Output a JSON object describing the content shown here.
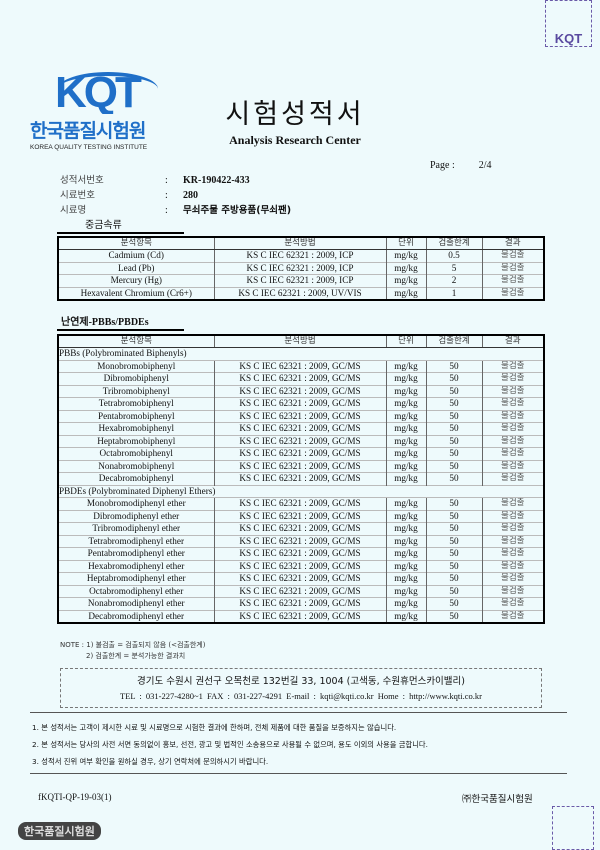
{
  "header": {
    "logo_mark": "KQT",
    "logo_korean": "한국품질시험원",
    "logo_english": "KOREA QUALITY TESTING INSTITUTE",
    "title_korean": "시험성적서",
    "title_english": "Analysis Research Center",
    "stamp_text": "KQT",
    "page_label": "Page :",
    "page_value": "2/4"
  },
  "info": [
    {
      "label": "성적서번호",
      "value": "KR-190422-433"
    },
    {
      "label": "시료번호",
      "value": "280"
    },
    {
      "label": "시료명",
      "value": "무쇠주물 주방용품(무쇠팬)"
    }
  ],
  "heavy_metals": {
    "section_title": "중금속류",
    "columns": [
      "분석항목",
      "분석방법",
      "단위",
      "검출한계",
      "결과"
    ],
    "rows": [
      [
        "Cadmium (Cd)",
        "KS C IEC 62321 : 2009, ICP",
        "mg/kg",
        "0.5",
        "불검출"
      ],
      [
        "Lead (Pb)",
        "KS C IEC 62321 : 2009, ICP",
        "mg/kg",
        "5",
        "불검출"
      ],
      [
        "Mercury (Hg)",
        "KS C IEC 62321 : 2009, ICP",
        "mg/kg",
        "2",
        "불검출"
      ],
      [
        "Hexavalent Chromium (Cr6+)",
        "KS C IEC 62321 : 2009, UV/VIS",
        "mg/kg",
        "1",
        "불검출"
      ]
    ]
  },
  "flame_retardants": {
    "section_title": "난연제-PBBs/PBDEs",
    "columns": [
      "분석항목",
      "분석방법",
      "단위",
      "검출한계",
      "결과"
    ],
    "groups": [
      {
        "name": "PBBs (Polybrominated Biphenyls)",
        "rows": [
          [
            "Monobromobiphenyl",
            "KS C IEC 62321 : 2009, GC/MS",
            "mg/kg",
            "50",
            "불검출"
          ],
          [
            "Dibromobiphenyl",
            "KS C IEC 62321 : 2009, GC/MS",
            "mg/kg",
            "50",
            "불검출"
          ],
          [
            "Tribromobiphenyl",
            "KS C IEC 62321 : 2009, GC/MS",
            "mg/kg",
            "50",
            "불검출"
          ],
          [
            "Tetrabromobiphenyl",
            "KS C IEC 62321 : 2009, GC/MS",
            "mg/kg",
            "50",
            "불검출"
          ],
          [
            "Pentabromobiphenyl",
            "KS C IEC 62321 : 2009, GC/MS",
            "mg/kg",
            "50",
            "불검출"
          ],
          [
            "Hexabromobiphenyl",
            "KS C IEC 62321 : 2009, GC/MS",
            "mg/kg",
            "50",
            "불검출"
          ],
          [
            "Heptabromobiphenyl",
            "KS C IEC 62321 : 2009, GC/MS",
            "mg/kg",
            "50",
            "불검출"
          ],
          [
            "Octabromobiphenyl",
            "KS C IEC 62321 : 2009, GC/MS",
            "mg/kg",
            "50",
            "불검출"
          ],
          [
            "Nonabromobiphenyl",
            "KS C IEC 62321 : 2009, GC/MS",
            "mg/kg",
            "50",
            "불검출"
          ],
          [
            "Decabromobiphenyl",
            "KS C IEC 62321 : 2009, GC/MS",
            "mg/kg",
            "50",
            "불검출"
          ]
        ]
      },
      {
        "name": "PBDEs (Polybrominated Diphenyl Ethers)",
        "rows": [
          [
            "Monobromodiphenyl ether",
            "KS C IEC 62321 : 2009, GC/MS",
            "mg/kg",
            "50",
            "불검출"
          ],
          [
            "Dibromodiphenyl ether",
            "KS C IEC 62321 : 2009, GC/MS",
            "mg/kg",
            "50",
            "불검출"
          ],
          [
            "Tribromodiphenyl ether",
            "KS C IEC 62321 : 2009, GC/MS",
            "mg/kg",
            "50",
            "불검출"
          ],
          [
            "Tetrabromodiphenyl ether",
            "KS C IEC 62321 : 2009, GC/MS",
            "mg/kg",
            "50",
            "불검출"
          ],
          [
            "Pentabromodiphenyl ether",
            "KS C IEC 62321 : 2009, GC/MS",
            "mg/kg",
            "50",
            "불검출"
          ],
          [
            "Hexabromodiphenyl ether",
            "KS C IEC 62321 : 2009, GC/MS",
            "mg/kg",
            "50",
            "불검출"
          ],
          [
            "Heptabromodiphenyl ether",
            "KS C IEC 62321 : 2009, GC/MS",
            "mg/kg",
            "50",
            "불검출"
          ],
          [
            "Octabromodiphenyl ether",
            "KS C IEC 62321 : 2009, GC/MS",
            "mg/kg",
            "50",
            "불검출"
          ],
          [
            "Nonabromodiphenyl ether",
            "KS C IEC 62321 : 2009, GC/MS",
            "mg/kg",
            "50",
            "불검출"
          ],
          [
            "Decabromodiphenyl ether",
            "KS C IEC 62321 : 2009, GC/MS",
            "mg/kg",
            "50",
            "불검출"
          ]
        ]
      }
    ]
  },
  "notes": [
    "NOTE : 1) 불검출 = 검출되지 않음 (<검출한계)",
    "2) 검출한계 = 분석가능한 결과치"
  ],
  "address": {
    "line1": "경기도 수원시 권선구 오목천로 132번길 33, 1004 (고색동, 수원휴먼스카이밸리)",
    "line2": "TEL : 031-227-4280~1   FAX : 031-227-4291   E-mail : kqti@kqti.co.kr   Home : http://www.kqti.co.kr"
  },
  "disclaimers": [
    "1. 본 성적서는 고객이 제시한 시료 및 시료명으로 시험한 결과에 한하며, 전체 제품에 대한 품질을 보증하지는 않습니다.",
    "2. 본 성적서는 당사의 사전 서면 동의없이 홍보, 선전, 광고 및 법적인 소송용으로 사용될 수 없으며, 용도 이외의 사용을 금합니다.",
    "3. 성적서 진위 여부 확인을 원하실 경우, 상기 연락처에 문의하시기 바랍니다."
  ],
  "footer": {
    "form_number": "fKQTI-QP-19-03(1)",
    "company": "㈜한국품질시험원",
    "seal_text": "한국품질시험원"
  }
}
